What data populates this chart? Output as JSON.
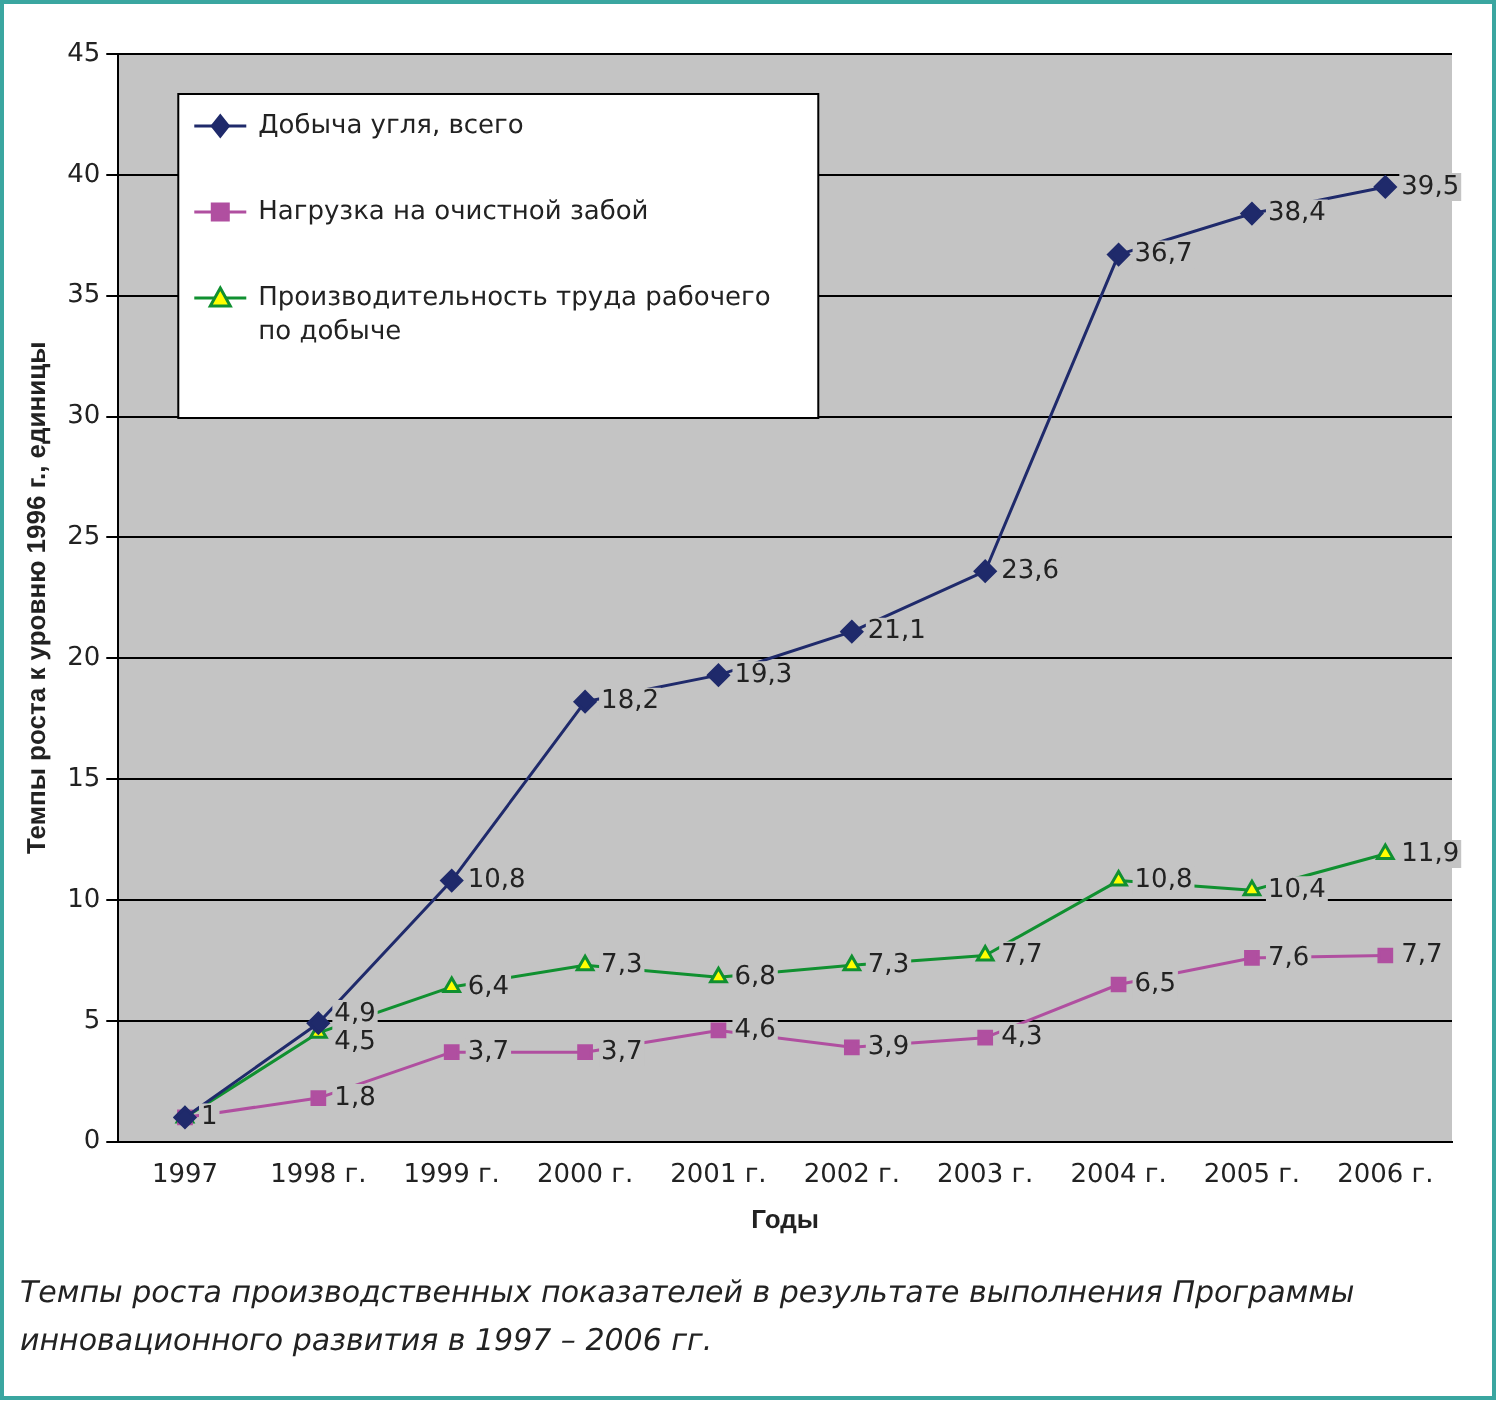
{
  "chart_data": {
    "type": "line",
    "xlabel": "Годы",
    "ylabel": "Темпы роста к уровню 1996 г., единицы",
    "categories": [
      "1997",
      "1998 г.",
      "1999 г.",
      "2000 г.",
      "2001 г.",
      "2002 г.",
      "2003 г.",
      "2004 г.",
      "2005 г.",
      "2006 г."
    ],
    "series": [
      {
        "name": "Добыча угля, всего",
        "color": "#1f2a6b",
        "marker": "diamond",
        "values": [
          1,
          4.9,
          10.8,
          18.2,
          19.3,
          21.1,
          23.6,
          36.7,
          38.4,
          39.5
        ],
        "value_labels": [
          "1",
          "4,9",
          "10,8",
          "18,2",
          "19,3",
          "21,1",
          "23,6",
          "36,7",
          "38,4",
          "39,5"
        ]
      },
      {
        "name": "Нагрузка на очистной забой",
        "color": "#b04fa0",
        "marker": "square",
        "values": [
          1,
          1.8,
          3.7,
          3.7,
          4.6,
          3.9,
          4.3,
          6.5,
          7.6,
          7.7
        ],
        "value_labels": [
          null,
          "1,8",
          "3,7",
          "3,7",
          "4,6",
          "3,9",
          "4,3",
          "6,5",
          "7,6",
          "7,7"
        ]
      },
      {
        "name": "Производительность труда рабочего по добыче",
        "color": "#109030",
        "marker": "triangle",
        "values": [
          1,
          4.5,
          6.4,
          7.3,
          6.8,
          7.3,
          7.7,
          10.8,
          10.4,
          11.9
        ],
        "value_labels": [
          null,
          "4,5",
          "6,4",
          "7,3",
          "6,8",
          "7,3",
          "7,7",
          "10,8",
          "10,4",
          "11,9"
        ]
      }
    ],
    "ylim": [
      0,
      45
    ],
    "yticks": [
      0,
      5,
      10,
      15,
      20,
      25,
      30,
      35,
      40,
      45
    ],
    "grid": "y",
    "legend": "top left",
    "annotations": [
      "Темпы роста производственных показателей в результате выполнения Программы инновационного развития в 1997 – 2006 гг."
    ]
  }
}
